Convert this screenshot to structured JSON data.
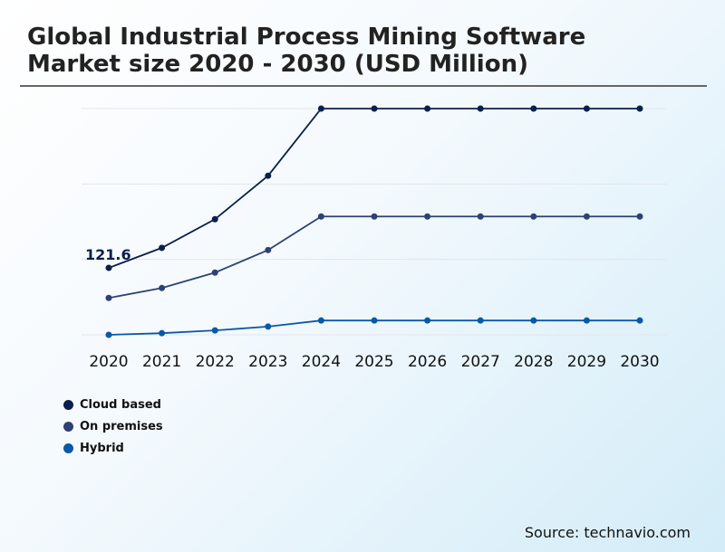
{
  "chart_data": {
    "type": "line",
    "title": "Global Industrial Process Mining Software Market size 2020 - 2030 (USD Million)",
    "xlabel": "",
    "ylabel": "",
    "categories": [
      "2020",
      "2021",
      "2022",
      "2023",
      "2024",
      "2025",
      "2026",
      "2027",
      "2028",
      "2029",
      "2030"
    ],
    "ylim": [
      0,
      411
    ],
    "grid": true,
    "legend_placement": "bottom-left",
    "series": [
      {
        "name": "Cloud based",
        "color": "#0b1f4a",
        "values": [
          121.6,
          158,
          210,
          289,
          411,
          411,
          411,
          411,
          411,
          411,
          411
        ]
      },
      {
        "name": "On premises",
        "color": "#2e4272",
        "values": [
          67,
          85,
          113,
          154,
          215,
          215,
          215,
          215,
          215,
          215,
          215
        ]
      },
      {
        "name": "Hybrid",
        "color": "#0a58a8",
        "values": [
          0,
          3,
          8,
          15,
          26,
          26,
          26,
          26,
          26,
          26,
          26
        ]
      }
    ],
    "annotations": [
      {
        "series": "Cloud based",
        "x": "2020",
        "label": "121.6"
      }
    ]
  },
  "source": "Source: technavio.com"
}
